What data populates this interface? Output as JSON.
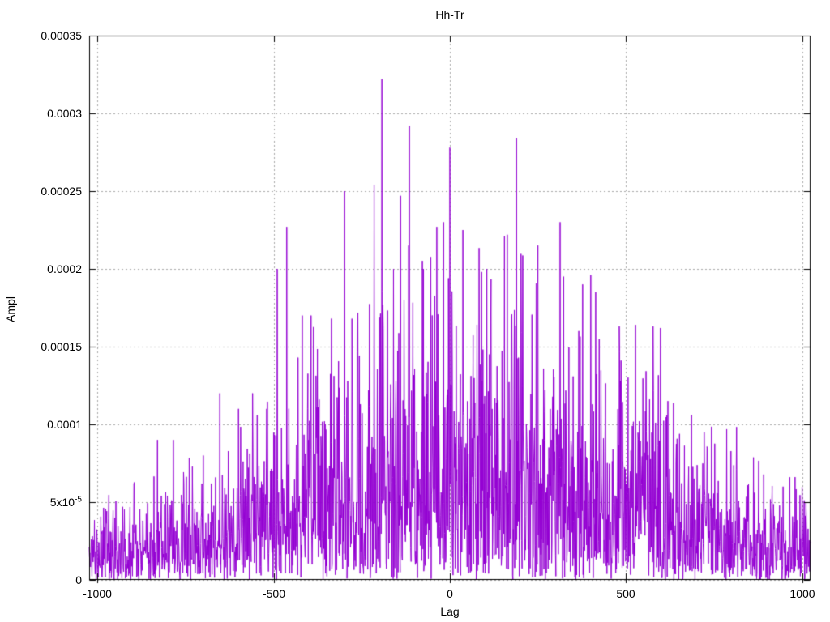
{
  "chart_data": {
    "type": "line",
    "title": "Hh-Tr",
    "xlabel": "Lag",
    "ylabel": "Ampl",
    "x_range": [
      -1024,
      1024
    ],
    "y_range": [
      0,
      0.00035
    ],
    "x_ticks": [
      {
        "value": -1000,
        "label": "-1000"
      },
      {
        "value": -500,
        "label": "-500"
      },
      {
        "value": 0,
        "label": "0"
      },
      {
        "value": 500,
        "label": "500"
      },
      {
        "value": 1000,
        "label": "1000"
      }
    ],
    "y_ticks": [
      {
        "value": 0,
        "label": "0"
      },
      {
        "value": 5e-05,
        "label": "5x10^-5"
      },
      {
        "value": 0.0001,
        "label": "0.0001"
      },
      {
        "value": 0.00015,
        "label": "0.00015"
      },
      {
        "value": 0.0002,
        "label": "0.0002"
      },
      {
        "value": 0.00025,
        "label": "0.00025"
      },
      {
        "value": 0.0003,
        "label": "0.0003"
      },
      {
        "value": 0.00035,
        "label": "0.00035"
      }
    ],
    "grid": true,
    "legend": "none",
    "line_color": "#9400d3",
    "grid_color": "#a8a8a8",
    "border_color": "#000000",
    "background_color": "#ffffff",
    "n_points": 2049,
    "noise": {
      "seed": 42,
      "clip_sigma": 2.6
    },
    "envelope": [
      [
        -1024,
        5.5e-05
      ],
      [
        -950,
        6e-05
      ],
      [
        -850,
        6.5e-05
      ],
      [
        -750,
        8e-05
      ],
      [
        -650,
        9e-05
      ],
      [
        -550,
        0.000105
      ],
      [
        -500,
        0.00012
      ],
      [
        -450,
        0.00014
      ],
      [
        -400,
        0.00016
      ],
      [
        -350,
        0.00017
      ],
      [
        -300,
        0.00019
      ],
      [
        -250,
        0.0002
      ],
      [
        -200,
        0.00022
      ],
      [
        -150,
        0.00022
      ],
      [
        -100,
        0.00023
      ],
      [
        -50,
        0.00022
      ],
      [
        0,
        0.00023
      ],
      [
        50,
        0.00022
      ],
      [
        100,
        0.00021
      ],
      [
        150,
        0.00022
      ],
      [
        200,
        0.00021
      ],
      [
        250,
        0.0002
      ],
      [
        300,
        0.00019
      ],
      [
        350,
        0.00018
      ],
      [
        400,
        0.00017
      ],
      [
        450,
        0.00016
      ],
      [
        500,
        0.00015
      ],
      [
        550,
        0.00014
      ],
      [
        600,
        0.00013
      ],
      [
        650,
        0.000115
      ],
      [
        700,
        0.0001
      ],
      [
        750,
        9e-05
      ],
      [
        800,
        8.5e-05
      ],
      [
        850,
        8e-05
      ],
      [
        900,
        7.5e-05
      ],
      [
        950,
        6.5e-05
      ],
      [
        1024,
        7e-05
      ]
    ],
    "peaks": [
      [
        -830,
        9e-05
      ],
      [
        -785,
        9e-05
      ],
      [
        -700,
        8e-05
      ],
      [
        -653,
        0.00012
      ],
      [
        -600,
        0.00011
      ],
      [
        -560,
        0.00012
      ],
      [
        -520,
        0.00011
      ],
      [
        -490,
        0.0002
      ],
      [
        -463,
        0.000227
      ],
      [
        -419,
        0.00017
      ],
      [
        -394,
        0.00017
      ],
      [
        -336,
        0.000168
      ],
      [
        -299,
        0.00025
      ],
      [
        -215,
        0.000254
      ],
      [
        -193,
        0.000322
      ],
      [
        -160,
        0.0002
      ],
      [
        -140,
        0.000247
      ],
      [
        -115,
        0.000292
      ],
      [
        -75,
        0.0002
      ],
      [
        -37,
        0.000227
      ],
      [
        -18,
        0.00023
      ],
      [
        0,
        0.000278
      ],
      [
        37,
        0.000225
      ],
      [
        90,
        0.000198
      ],
      [
        105,
        0.0002
      ],
      [
        155,
        0.000221
      ],
      [
        163,
        0.000222
      ],
      [
        189,
        0.000284
      ],
      [
        250,
        0.000215
      ],
      [
        313,
        0.00023
      ],
      [
        323,
        0.000195
      ],
      [
        366,
        0.00016
      ],
      [
        377,
        0.00019
      ],
      [
        400,
        0.000196
      ],
      [
        414,
        0.000185
      ],
      [
        481,
        0.000163
      ],
      [
        527,
        0.000164
      ],
      [
        577,
        0.000163
      ],
      [
        598,
        0.000162
      ],
      [
        619,
        0.000115
      ],
      [
        686,
        0.000106
      ],
      [
        743,
        9.85e-05
      ],
      [
        786,
        9.69e-05
      ],
      [
        814,
        9.83e-05
      ],
      [
        877,
        7.66e-05
      ],
      [
        946,
        6e-05
      ]
    ]
  }
}
